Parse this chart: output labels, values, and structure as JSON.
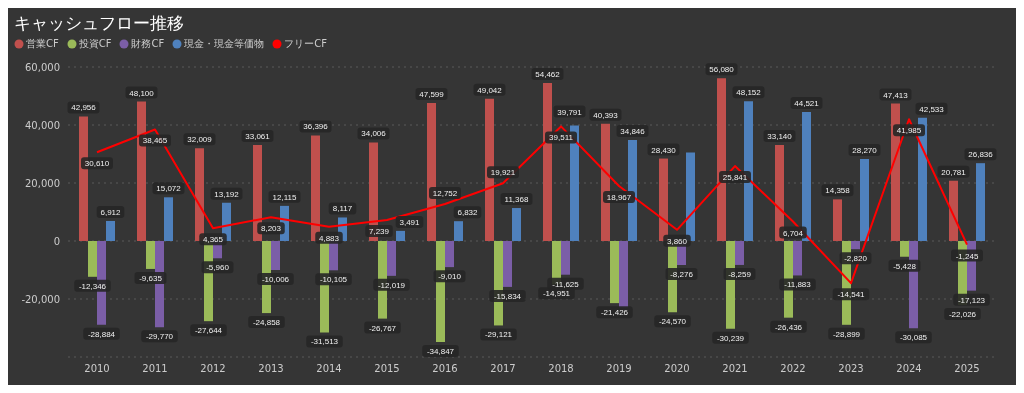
{
  "chart_data": {
    "type": "bar",
    "title": "キャッシュフロー推移",
    "categories": [
      "2010",
      "2011",
      "2012",
      "2013",
      "2014",
      "2015",
      "2016",
      "2017",
      "2018",
      "2019",
      "2020",
      "2021",
      "2022",
      "2023",
      "2024",
      "2025"
    ],
    "series": [
      {
        "name": "営業CF",
        "color": "#c0504d",
        "values": [
          42956,
          48100,
          32009,
          33061,
          36396,
          34006,
          47599,
          49042,
          54462,
          40393,
          28430,
          56080,
          33140,
          14358,
          47413,
          20781
        ],
        "value_labels": [
          "42,956",
          "48,100",
          "32,009",
          "33,061",
          "36,396",
          "34,006",
          "47,599",
          "49,042",
          "54,462",
          "40,393",
          "28,430",
          "56,080",
          "33,140",
          "14,358",
          "47,413",
          "20,781"
        ]
      },
      {
        "name": "投資CF",
        "color": "#9bbb59",
        "values": [
          -12346,
          -9635,
          -27644,
          -24858,
          -31513,
          -26767,
          -34847,
          -29121,
          -14951,
          -21426,
          -24570,
          -30239,
          -26436,
          -28899,
          -5428,
          -22026
        ],
        "value_labels": [
          "-12,346",
          "-9,635",
          "-27,644",
          "-24,858",
          "-31,513",
          "-26,767",
          "-34,847",
          "-29,121",
          "-14,951",
          "-21,426",
          "-24,570",
          "-30,239",
          "-26,436",
          "-28,899",
          "-5,428",
          "-22,026"
        ]
      },
      {
        "name": "財務CF",
        "color": "#7b5ea7",
        "values": [
          -28884,
          -29770,
          -5960,
          -10006,
          -10105,
          -12019,
          -9010,
          -15834,
          -11625,
          -22900,
          -8276,
          -8259,
          -11883,
          -2820,
          -30085,
          -17123
        ],
        "value_labels": [
          "-28,884",
          "-29,770",
          "-5,960",
          "-10,006",
          "-10,105",
          "-12,019",
          "-9,010",
          "-15,834",
          "-11,625",
          null,
          "-8,276",
          "-8,259",
          "-11,883",
          "-2,820",
          "-30,085",
          "-17,123"
        ]
      },
      {
        "name": "現金・現金等価物",
        "color": "#4f81bd",
        "values": [
          6912,
          15072,
          13192,
          12115,
          8117,
          3491,
          6832,
          11368,
          39791,
          34846,
          30500,
          48152,
          44521,
          28270,
          42533,
          26836
        ],
        "value_labels": [
          "6,912",
          "15,072",
          "13,192",
          "12,115",
          "8,117",
          "3,491",
          "6,832",
          "11,368",
          "39,791",
          "34,846",
          null,
          "48,152",
          "44,521",
          "28,270",
          "42,533",
          "26,836"
        ]
      },
      {
        "name": "フリーCF",
        "type": "line",
        "color": "#ff0000",
        "values": [
          30610,
          38465,
          4365,
          8203,
          4883,
          7239,
          12752,
          19921,
          39511,
          18967,
          3860,
          25841,
          6704,
          -14541,
          41985,
          -1245
        ],
        "value_labels": [
          "30,610",
          "38,465",
          "4,365",
          "8,203",
          "4,883",
          "7,239",
          "12,752",
          "19,921",
          "39,511",
          "18,967",
          "3,860",
          "25,841",
          "6,704",
          "-14,541",
          "41,985",
          "-1,245"
        ]
      }
    ],
    "ylim": [
      -40000,
      60000
    ],
    "yticks": [
      {
        "value": -20000,
        "label": "-20,000"
      },
      0,
      {
        "value": 20000,
        "label": "20,000"
      },
      {
        "value": 40000,
        "label": "40,000"
      },
      {
        "value": 60000,
        "label": "60,000"
      }
    ],
    "grid": "y",
    "legend": "top left",
    "marker": "none",
    "line_style": "solid"
  }
}
